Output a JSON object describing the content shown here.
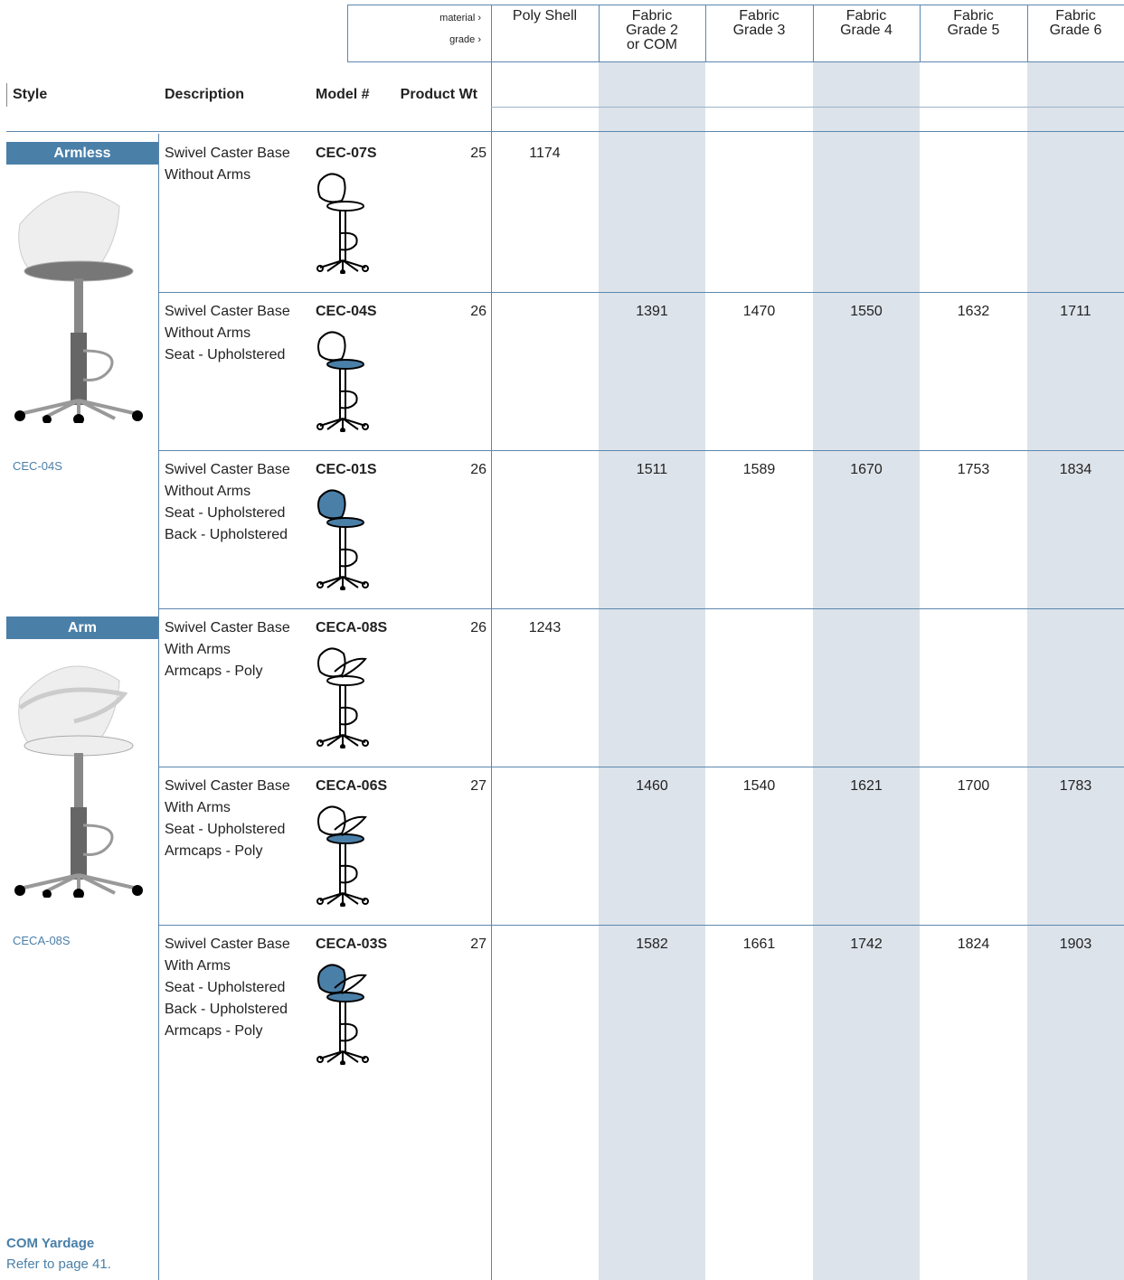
{
  "header": {
    "material_label": "material ›",
    "grade_label": "grade ›",
    "columns": [
      "Poly Shell",
      "Fabric\nGrade 2\nor COM",
      "Fabric\nGrade 3",
      "Fabric\nGrade 4",
      "Fabric\nGrade 5",
      "Fabric\nGrade 6"
    ]
  },
  "table": {
    "headers": [
      "Style",
      "Description",
      "Model #",
      "Product Wt"
    ],
    "groups": [
      {
        "style": "Armless",
        "image_caption": "CEC-04S",
        "rows": [
          {
            "description": "Swivel Caster Base\nWithout Arms",
            "model": "CEC-07S",
            "weight": 25,
            "prices": [
              1174,
              null,
              null,
              null,
              null,
              null
            ]
          },
          {
            "description": "Swivel Caster Base\nWithout Arms\nSeat - Upholstered",
            "model": "CEC-04S",
            "weight": 26,
            "prices": [
              null,
              1391,
              1470,
              1550,
              1632,
              1711
            ]
          },
          {
            "description": "Swivel Caster Base\nWithout Arms\nSeat - Upholstered\nBack - Upholstered",
            "model": "CEC-01S",
            "weight": 26,
            "prices": [
              null,
              1511,
              1589,
              1670,
              1753,
              1834
            ]
          }
        ]
      },
      {
        "style": "Arm",
        "image_caption": "CECA-08S",
        "rows": [
          {
            "description": "Swivel Caster Base\nWith Arms\nArmcaps - Poly",
            "model": "CECA-08S",
            "weight": 26,
            "prices": [
              1243,
              null,
              null,
              null,
              null,
              null
            ]
          },
          {
            "description": "Swivel Caster Base\nWith Arms\nSeat - Upholstered\nArmcaps - Poly",
            "model": "CECA-06S",
            "weight": 27,
            "prices": [
              null,
              1460,
              1540,
              1621,
              1700,
              1783
            ]
          },
          {
            "description": "Swivel Caster Base\nWith Arms\nSeat - Upholstered\nBack - Upholstered\nArmcaps - Poly",
            "model": "CECA-03S",
            "weight": 27,
            "prices": [
              null,
              1582,
              1661,
              1742,
              1824,
              1903
            ]
          }
        ]
      }
    ]
  },
  "footer": {
    "title": "COM Yardage",
    "note": "Refer to page 41."
  }
}
